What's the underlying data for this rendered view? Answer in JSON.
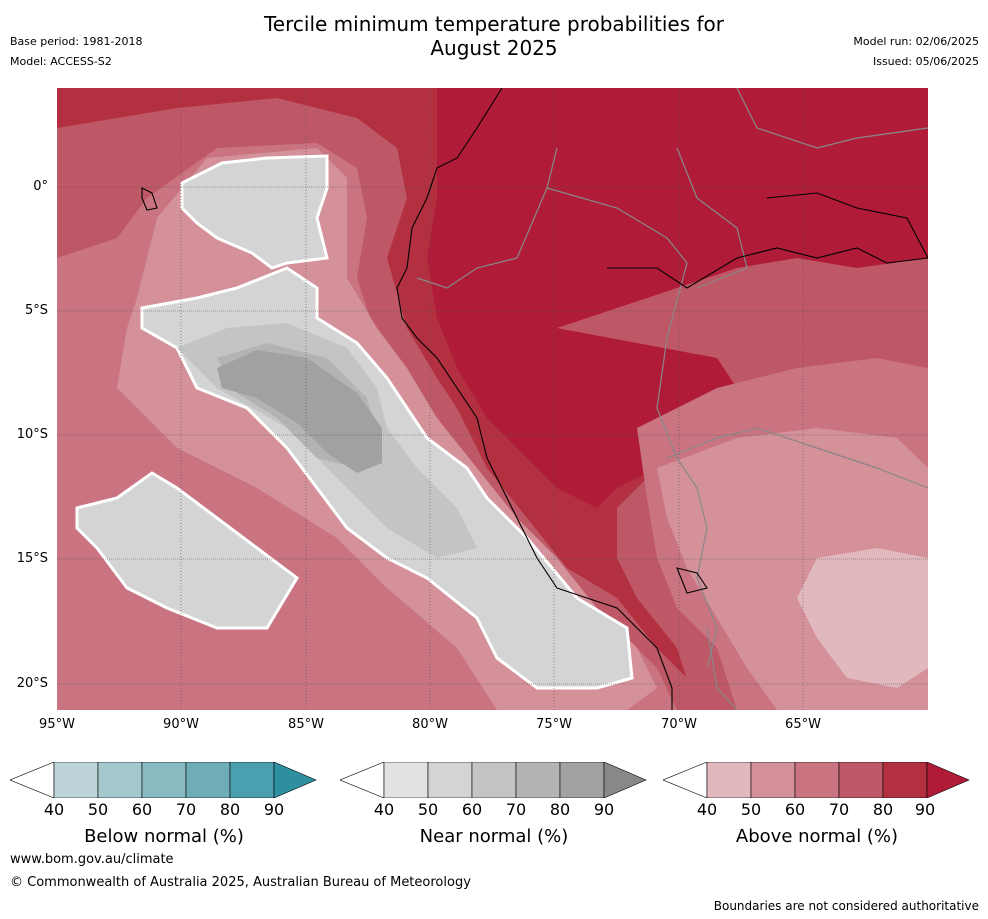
{
  "title_line1": "Tercile minimum temperature probabilities for",
  "title_line2": "August 2025",
  "meta": {
    "base_period": "Base period: 1981-2018",
    "model": "Model: ACCESS-S2",
    "model_run": "Model run: 02/06/2025",
    "issued": "Issued: 05/06/2025"
  },
  "axes": {
    "lat_labels": [
      "0°",
      "5°S",
      "10°S",
      "15°S",
      "20°S"
    ],
    "lon_labels": [
      "95°W",
      "90°W",
      "85°W",
      "80°W",
      "75°W",
      "70°W",
      "65°W"
    ]
  },
  "legends": [
    {
      "label": "Below normal (%)",
      "ticks": [
        "40",
        "50",
        "60",
        "70",
        "80",
        "90"
      ],
      "colors": [
        "#ffffff",
        "#bcd4d9",
        "#a5c8ce",
        "#8bb9c2",
        "#6eacb7",
        "#4aa0af",
        "#2e8fa0"
      ]
    },
    {
      "label": "Near normal (%)",
      "ticks": [
        "40",
        "50",
        "60",
        "70",
        "80",
        "90"
      ],
      "colors": [
        "#ffffff",
        "#e2e2e2",
        "#d4d4d4",
        "#c4c4c4",
        "#b3b3b3",
        "#a1a1a1",
        "#888888"
      ]
    },
    {
      "label": "Above normal (%)",
      "ticks": [
        "40",
        "50",
        "60",
        "70",
        "80",
        "90"
      ],
      "colors": [
        "#ffffff",
        "#e0b8bd",
        "#d4919a",
        "#c97480",
        "#be5766",
        "#b2303f",
        "#b01c38"
      ]
    }
  ],
  "map_colors": {
    "above_90": "#b01c38",
    "above_80": "#b2303f",
    "above_70": "#be5766",
    "above_60": "#c97480",
    "above_50": "#d4919a",
    "above_40": "#e0b8bd",
    "near_50": "#d4d4d4",
    "near_60": "#c4c4c4",
    "near_70": "#b3b3b3",
    "near_80": "#a1a1a1",
    "border": "#888888",
    "coast": "#000000"
  },
  "footer": {
    "url": "www.bom.gov.au/climate",
    "copyright": "© Commonwealth of Australia 2025, Australian Bureau of Meteorology",
    "disclaimer": "Boundaries are not considered authoritative"
  }
}
